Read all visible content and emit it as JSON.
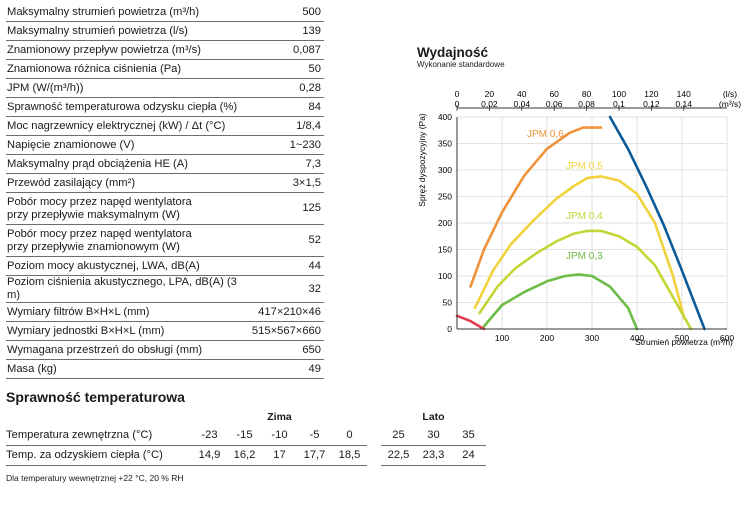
{
  "specs": [
    {
      "label": "Maksymalny strumień powietrza (m³/h)",
      "value": "500"
    },
    {
      "label": "Maksymalny strumień powietrza (l/s)",
      "value": "139"
    },
    {
      "label": "Znamionowy przepływ powietrza (m³/s)",
      "value": "0,087"
    },
    {
      "label": "Znamionowa różnica ciśnienia (Pa)",
      "value": "50"
    },
    {
      "label": "JPM (W/(m³/h))",
      "value": "0,28"
    },
    {
      "label": "Sprawność temperaturowa odzysku ciepła (%)",
      "value": "84"
    },
    {
      "label": "Moc nagrzewnicy elektrycznej (kW) / Δt (°C)",
      "value": "1/8,4"
    },
    {
      "label": "Napięcie znamionowe (V)",
      "value": "1~230"
    },
    {
      "label": "Maksymalny prąd obciążenia HE (A)",
      "value": "7,3"
    },
    {
      "label": "Przewód zasilający (mm²)",
      "value": "3×1,5"
    },
    {
      "label": "Pobór mocy przez napęd wentylatora\nprzy przepływie maksymalnym (W)",
      "value": "125"
    },
    {
      "label": "Pobór mocy przez napęd wentylatora\nprzy przepływie znamionowym (W)",
      "value": "52"
    },
    {
      "label": "Poziom mocy akustycznej, LWA, dB(A)",
      "value": "44"
    },
    {
      "label": "Poziom ciśnienia akustycznego, LPA, dB(A) (3 m)",
      "value": "32"
    },
    {
      "label": "Wymiary filtrów B×H×L (mm)",
      "value": "417×210×46"
    },
    {
      "label": "Wymiary jednostki B×H×L (mm)",
      "value": "515×567×660"
    },
    {
      "label": "Wymagana przestrzeń do obsługi (mm)",
      "value": "650"
    },
    {
      "label": "Masa (kg)",
      "value": "49"
    }
  ],
  "chart_data": {
    "type": "line",
    "title": "Wydajność",
    "subtitle": "Wykonanie standardowe",
    "xlabel": "Strumień powietrza (m³/h)",
    "ylabel": "Spręż dyspozycyjny (Pa)",
    "xlim": [
      0,
      600
    ],
    "ylim": [
      0,
      400
    ],
    "x_ticks": [
      "100",
      "200",
      "300",
      "400",
      "500",
      "600"
    ],
    "y_ticks": [
      "0",
      "50",
      "100",
      "150",
      "200",
      "250",
      "300",
      "350",
      "400"
    ],
    "top_axis_ls": {
      "unit": "(l/s)",
      "ticks": [
        "0",
        "20",
        "40",
        "60",
        "80",
        "100",
        "120",
        "140"
      ],
      "range": [
        0,
        166.7
      ]
    },
    "top_axis_m3s": {
      "unit": "(m³/s)",
      "ticks": [
        "0",
        "0,02",
        "0,04",
        "0,06",
        "0,08",
        "0,1",
        "0,12",
        "0,14"
      ],
      "range": [
        0,
        0.1667
      ]
    },
    "grid": true,
    "series": [
      {
        "name": "JPM 0,6",
        "color": "#f0923a",
        "x": [
          30,
          60,
          100,
          150,
          200,
          250,
          280,
          300,
          320
        ],
        "y": [
          80,
          150,
          220,
          290,
          340,
          370,
          380,
          380,
          380
        ]
      },
      {
        "name": "JPM 0,5",
        "color": "#f2d23a",
        "x": [
          40,
          80,
          120,
          170,
          220,
          260,
          290,
          320,
          360,
          400,
          440,
          480,
          505
        ],
        "y": [
          40,
          110,
          160,
          205,
          245,
          270,
          285,
          288,
          280,
          255,
          200,
          100,
          20
        ]
      },
      {
        "name": "JPM 0,4",
        "color": "#c4d637",
        "x": [
          50,
          90,
          130,
          180,
          220,
          260,
          290,
          320,
          360,
          400,
          440,
          480,
          520
        ],
        "y": [
          30,
          80,
          115,
          145,
          165,
          180,
          185,
          185,
          175,
          155,
          120,
          60,
          0
        ]
      },
      {
        "name": "JPM 0,3",
        "color": "#6cbc45",
        "x": [
          60,
          100,
          150,
          200,
          240,
          270,
          300,
          340,
          380,
          400
        ],
        "y": [
          5,
          45,
          70,
          90,
          100,
          103,
          100,
          80,
          40,
          0
        ]
      },
      {
        "name": "",
        "color": "#0c5a97",
        "x": [
          340,
          380,
          420,
          460,
          500,
          550
        ],
        "y": [
          400,
          340,
          270,
          195,
          110,
          0
        ]
      },
      {
        "name": "",
        "color": "#e63a4e",
        "x": [
          0,
          30,
          60
        ],
        "y": [
          25,
          15,
          0
        ]
      }
    ]
  },
  "temp": {
    "title": "Sprawność temperaturowa",
    "group_winter": "Zima",
    "group_summer": "Lato",
    "rows": [
      {
        "label": "Temperatura zewnętrzna (°C)",
        "winter": [
          "-23",
          "-15",
          "-10",
          "-5",
          "0"
        ],
        "summer": [
          "25",
          "30",
          "35"
        ]
      },
      {
        "label": "Temp. za odzyskiem ciepła (°C)",
        "winter": [
          "14,9",
          "16,2",
          "17",
          "17,7",
          "18,5"
        ],
        "summer": [
          "22,5",
          "23,3",
          "24"
        ]
      }
    ],
    "footnote": "Dla temperatury wewnętrznej +22 °C, 20 % RH"
  }
}
